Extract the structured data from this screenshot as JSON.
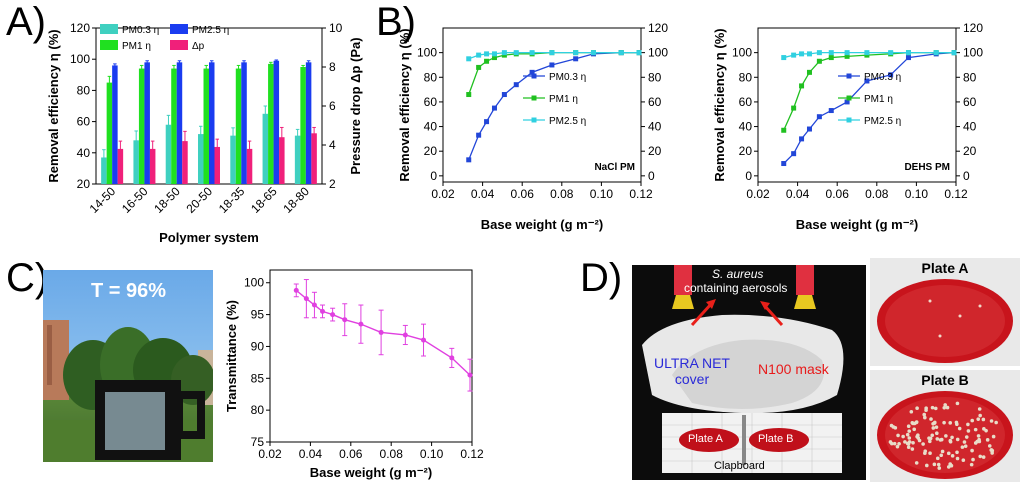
{
  "panels": {
    "a": "A)",
    "b": "B)",
    "c": "C)",
    "d": "D)"
  },
  "colors": {
    "pm03": "#3fd0c0",
    "pm1": "#20e020",
    "pm25": "#1a3cf0",
    "dp": "#f0207a",
    "line03": "#2246d8",
    "line1": "#20c020",
    "line25": "#30d0e0",
    "trans": "#e040e0"
  },
  "chart_data": [
    {
      "type": "bar",
      "panel": "A",
      "categories": [
        "14-50",
        "16-50",
        "18-50",
        "20-50",
        "18-35",
        "18-65",
        "18-80"
      ],
      "xlabel": "Polymer system",
      "ylabel_left": "Removal efficiency η (%)",
      "ylabel_right": "Pressure drop Δp (Pa)",
      "ylim_left": [
        20,
        120
      ],
      "ylim_right": [
        2,
        10
      ],
      "yticks_left": [
        "20",
        "40",
        "60",
        "80",
        "100",
        "120"
      ],
      "yticks_right": [
        "2",
        "4",
        "6",
        "8",
        "10"
      ],
      "series": [
        {
          "name": "PM0.3 η",
          "axis": "left",
          "values": [
            37,
            48,
            58,
            52,
            51,
            65,
            51
          ],
          "errors": [
            5,
            6,
            6,
            5,
            5,
            5,
            4
          ]
        },
        {
          "name": "PM1 η",
          "axis": "left",
          "values": [
            85,
            94,
            94,
            94,
            94,
            97,
            95
          ],
          "errors": [
            4,
            2,
            2,
            2,
            2,
            1,
            1
          ]
        },
        {
          "name": "PM2.5 η",
          "axis": "left",
          "values": [
            96,
            98,
            98,
            98,
            98,
            99,
            98
          ],
          "errors": [
            1,
            1,
            1,
            1,
            1,
            0.5,
            1
          ]
        },
        {
          "name": "Δp",
          "axis": "right",
          "values": [
            3.8,
            3.8,
            4.2,
            3.9,
            3.8,
            4.4,
            4.6
          ],
          "errors": [
            0.4,
            0.4,
            0.5,
            0.4,
            0.4,
            0.5,
            0.3
          ]
        }
      ]
    },
    {
      "type": "line",
      "panel": "B-left",
      "annotation": "NaCl PM",
      "xlabel": "Base weight (g m⁻²)",
      "ylabel": "Removal efficiency η (%)",
      "xlim": [
        0.02,
        0.12
      ],
      "ylim": [
        -5,
        120
      ],
      "xticks": [
        "0.02",
        "0.04",
        "0.06",
        "0.08",
        "0.10",
        "0.12"
      ],
      "yticks_left": [
        "0",
        "20",
        "40",
        "60",
        "80",
        "100"
      ],
      "yticks_right": [
        "0",
        "20",
        "40",
        "60",
        "80",
        "100",
        "120"
      ],
      "series": [
        {
          "name": "PM0.3 η",
          "x": [
            0.033,
            0.038,
            0.042,
            0.046,
            0.051,
            0.057,
            0.065,
            0.075,
            0.087,
            0.096,
            0.11,
            0.119
          ],
          "y": [
            13,
            33,
            44,
            55,
            66,
            74,
            84,
            90,
            95,
            99,
            100,
            100
          ]
        },
        {
          "name": "PM1 η",
          "x": [
            0.033,
            0.038,
            0.042,
            0.046,
            0.051,
            0.057,
            0.065,
            0.075,
            0.087,
            0.096,
            0.11,
            0.119
          ],
          "y": [
            66,
            88,
            93,
            96,
            98,
            99,
            99,
            100,
            100,
            100,
            100,
            100
          ]
        },
        {
          "name": "PM2.5 η",
          "x": [
            0.033,
            0.038,
            0.042,
            0.046,
            0.051,
            0.057,
            0.065,
            0.075,
            0.087,
            0.096,
            0.11,
            0.119
          ],
          "y": [
            95,
            98,
            99,
            99,
            100,
            100,
            100,
            100,
            100,
            100,
            100,
            100
          ]
        }
      ]
    },
    {
      "type": "line",
      "panel": "B-right",
      "annotation": "DEHS PM",
      "xlabel": "Base weight (g m⁻²)",
      "ylabel": "Removal efficiency η (%)",
      "xlim": [
        0.02,
        0.12
      ],
      "ylim": [
        -5,
        120
      ],
      "xticks": [
        "0.02",
        "0.04",
        "0.06",
        "0.08",
        "0.10",
        "0.12"
      ],
      "yticks_left": [
        "0",
        "20",
        "40",
        "60",
        "80",
        "100"
      ],
      "yticks_right": [
        "0",
        "20",
        "40",
        "60",
        "80",
        "100",
        "120"
      ],
      "series": [
        {
          "name": "PM0.3 η",
          "x": [
            0.033,
            0.038,
            0.042,
            0.046,
            0.051,
            0.057,
            0.065,
            0.075,
            0.087,
            0.096,
            0.11,
            0.119
          ],
          "y": [
            10,
            18,
            30,
            38,
            48,
            53,
            60,
            77,
            82,
            96,
            99,
            100
          ]
        },
        {
          "name": "PM1 η",
          "x": [
            0.033,
            0.038,
            0.042,
            0.046,
            0.051,
            0.057,
            0.065,
            0.075,
            0.087,
            0.096,
            0.11,
            0.119
          ],
          "y": [
            37,
            55,
            73,
            84,
            93,
            96,
            97,
            98,
            99,
            100,
            100,
            100
          ]
        },
        {
          "name": "PM2.5 η",
          "x": [
            0.033,
            0.038,
            0.042,
            0.046,
            0.051,
            0.057,
            0.065,
            0.075,
            0.087,
            0.096,
            0.11,
            0.119
          ],
          "y": [
            96,
            98,
            99,
            99,
            100,
            100,
            100,
            100,
            100,
            100,
            100,
            100
          ]
        }
      ]
    },
    {
      "type": "line",
      "panel": "C",
      "xlabel": "Base weight (g m⁻²)",
      "ylabel": "Transmittance (%)",
      "xlim": [
        0.02,
        0.12
      ],
      "ylim": [
        75,
        102
      ],
      "xticks": [
        "0.02",
        "0.04",
        "0.06",
        "0.08",
        "0.10",
        "0.12"
      ],
      "yticks": [
        "75",
        "80",
        "85",
        "90",
        "95",
        "100"
      ],
      "series": [
        {
          "x": [
            0.033,
            0.038,
            0.042,
            0.046,
            0.051,
            0.057,
            0.065,
            0.075,
            0.087,
            0.096,
            0.11,
            0.119
          ],
          "y": [
            98.8,
            97.5,
            96.5,
            95.5,
            95.0,
            94.2,
            93.5,
            92.2,
            91.8,
            91.0,
            88.2,
            85.5
          ],
          "errors": [
            1.0,
            3.0,
            2.0,
            1.0,
            1.0,
            2.5,
            3.0,
            3.5,
            1.5,
            2.5,
            1.5,
            2.5
          ]
        }
      ]
    }
  ],
  "photo_c": {
    "label": "T = 96%"
  },
  "photo_d": {
    "aerosol_line1": "S. aureus",
    "aerosol_line2": "containing aerosols",
    "cover_line1": "ULTRA NET",
    "cover_line2": "cover",
    "mask": "N100 mask",
    "plate_a_label": "Plate A",
    "plate_b_label": "Plate B",
    "clapboard": "Clapboard"
  },
  "petri": {
    "plate_a_title": "Plate A",
    "plate_b_title": "Plate B"
  }
}
